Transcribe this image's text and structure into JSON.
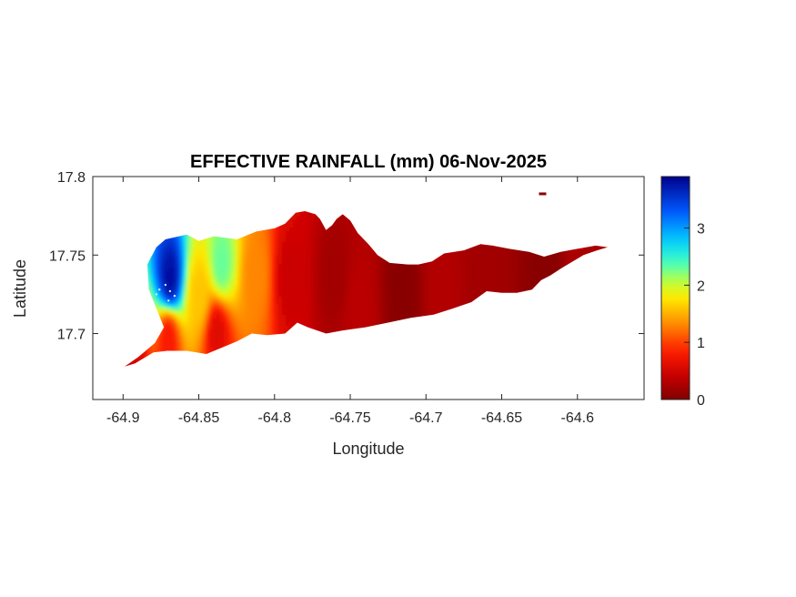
{
  "chart_data": {
    "type": "heatmap",
    "title": "EFFECTIVE RAINFALL (mm) 06-Nov-2025",
    "xlabel": "Longitude",
    "ylabel": "Latitude",
    "xlim": [
      -64.92,
      -64.556
    ],
    "ylim": [
      17.658,
      17.8
    ],
    "xticks": [
      -64.9,
      -64.85,
      -64.8,
      -64.75,
      -64.7,
      -64.65,
      -64.6
    ],
    "xtick_labels": [
      "-64.9",
      "-64.85",
      "-64.8",
      "-64.75",
      "-64.7",
      "-64.65",
      "-64.6"
    ],
    "yticks": [
      17.7,
      17.75,
      17.8
    ],
    "ytick_labels": [
      "17.7",
      "17.75",
      "17.8"
    ],
    "colorbar": {
      "colormap": "jet",
      "min": 0,
      "max": 3.9,
      "ticks": [
        0,
        1,
        2,
        3
      ],
      "tick_labels": [
        "0",
        "1",
        "2",
        "3"
      ]
    },
    "grid": false,
    "island_outline": [
      [
        -64.899,
        17.679
      ],
      [
        -64.89,
        17.685
      ],
      [
        -64.879,
        17.694
      ],
      [
        -64.873,
        17.704
      ],
      [
        -64.878,
        17.716
      ],
      [
        -64.883,
        17.728
      ],
      [
        -64.884,
        17.744
      ],
      [
        -64.878,
        17.755
      ],
      [
        -64.872,
        17.76
      ],
      [
        -64.858,
        17.763
      ],
      [
        -64.85,
        17.759
      ],
      [
        -64.84,
        17.762
      ],
      [
        -64.825,
        17.76
      ],
      [
        -64.812,
        17.765
      ],
      [
        -64.8,
        17.767
      ],
      [
        -64.793,
        17.77
      ],
      [
        -64.786,
        17.777
      ],
      [
        -64.78,
        17.778
      ],
      [
        -64.773,
        17.776
      ],
      [
        -64.77,
        17.773
      ],
      [
        -64.766,
        17.766
      ],
      [
        -64.762,
        17.769
      ],
      [
        -64.759,
        17.773
      ],
      [
        -64.755,
        17.776
      ],
      [
        -64.75,
        17.772
      ],
      [
        -64.745,
        17.764
      ],
      [
        -64.738,
        17.757
      ],
      [
        -64.732,
        17.75
      ],
      [
        -64.724,
        17.745
      ],
      [
        -64.712,
        17.744
      ],
      [
        -64.705,
        17.744
      ],
      [
        -64.696,
        17.746
      ],
      [
        -64.688,
        17.751
      ],
      [
        -64.675,
        17.753
      ],
      [
        -64.664,
        17.757
      ],
      [
        -64.656,
        17.756
      ],
      [
        -64.645,
        17.754
      ],
      [
        -64.632,
        17.752
      ],
      [
        -64.622,
        17.749
      ],
      [
        -64.611,
        17.752
      ],
      [
        -64.6,
        17.754
      ],
      [
        -64.588,
        17.756
      ],
      [
        -64.58,
        17.755
      ],
      [
        -64.587,
        17.753
      ],
      [
        -64.596,
        17.75
      ],
      [
        -64.61,
        17.742
      ],
      [
        -64.618,
        17.737
      ],
      [
        -64.624,
        17.734
      ],
      [
        -64.63,
        17.728
      ],
      [
        -64.64,
        17.726
      ],
      [
        -64.65,
        17.726
      ],
      [
        -64.66,
        17.727
      ],
      [
        -64.67,
        17.72
      ],
      [
        -64.682,
        17.716
      ],
      [
        -64.695,
        17.712
      ],
      [
        -64.71,
        17.71
      ],
      [
        -64.725,
        17.707
      ],
      [
        -64.74,
        17.704
      ],
      [
        -64.755,
        17.702
      ],
      [
        -64.766,
        17.7
      ],
      [
        -64.778,
        17.704
      ],
      [
        -64.785,
        17.707
      ],
      [
        -64.793,
        17.7
      ],
      [
        -64.805,
        17.699
      ],
      [
        -64.815,
        17.7
      ],
      [
        -64.825,
        17.695
      ],
      [
        -64.835,
        17.691
      ],
      [
        -64.845,
        17.687
      ],
      [
        -64.858,
        17.689
      ],
      [
        -64.871,
        17.689
      ],
      [
        -64.88,
        17.688
      ],
      [
        -64.892,
        17.681
      ]
    ],
    "islet": {
      "lon": -64.623,
      "lat": 17.789
    },
    "rainfall_centers": [
      {
        "lon": -64.869,
        "lat": 17.735,
        "value": 3.8
      },
      {
        "lon": -64.835,
        "lat": 17.744,
        "value": 2.3
      },
      {
        "lon": -64.85,
        "lat": 17.724,
        "value": 1.6
      },
      {
        "lon": -64.838,
        "lat": 17.7,
        "value": 0.6
      },
      {
        "lon": -64.812,
        "lat": 17.737,
        "value": 1.3
      },
      {
        "lon": -64.79,
        "lat": 17.735,
        "value": 0.45
      },
      {
        "lon": -64.76,
        "lat": 17.735,
        "value": 0.2
      },
      {
        "lon": -64.745,
        "lat": 17.718,
        "value": 0.35
      },
      {
        "lon": -64.715,
        "lat": 17.728,
        "value": 0.05
      },
      {
        "lon": -64.69,
        "lat": 17.727,
        "value": 0.3
      },
      {
        "lon": -64.66,
        "lat": 17.737,
        "value": 0.2
      },
      {
        "lon": -64.62,
        "lat": 17.745,
        "value": 0.05
      },
      {
        "lon": -64.6,
        "lat": 17.752,
        "value": 0.25
      },
      {
        "lon": -64.87,
        "lat": 17.697,
        "value": 0.8
      },
      {
        "lon": -64.895,
        "lat": 17.682,
        "value": 0.5
      }
    ],
    "station_markers": [
      {
        "lon": -64.872,
        "lat": 17.731
      },
      {
        "lon": -64.869,
        "lat": 17.727
      },
      {
        "lon": -64.866,
        "lat": 17.724
      },
      {
        "lon": -64.87,
        "lat": 17.721
      },
      {
        "lon": -64.876,
        "lat": 17.728
      },
      {
        "lon": -64.878,
        "lat": 17.725
      }
    ]
  }
}
